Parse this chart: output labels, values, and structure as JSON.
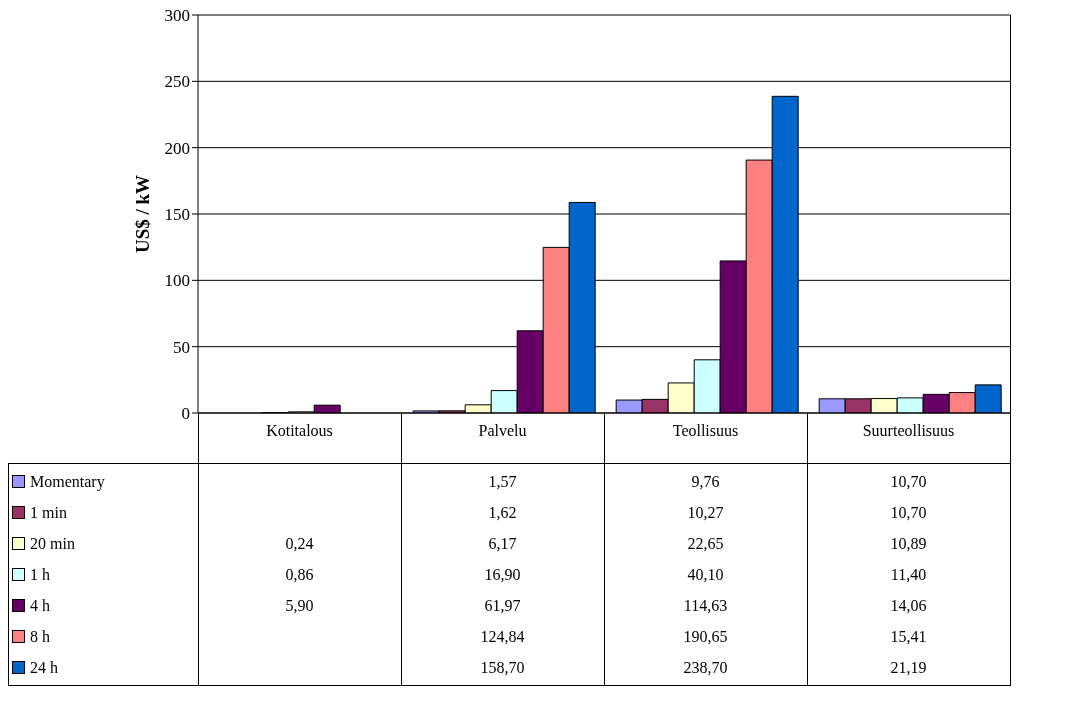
{
  "chart_data": {
    "type": "bar",
    "ylabel": "US$ / kW",
    "categories": [
      "Kotitalous",
      "Palvelu",
      "Teollisuus",
      "Suurteollisuus"
    ],
    "ylim": [
      0,
      300
    ],
    "yticks": [
      0,
      50,
      100,
      150,
      200,
      250,
      300
    ],
    "grid": "y",
    "legend": "bottom left",
    "series": [
      {
        "name": "Momentary",
        "color": "#9999ff",
        "values": [
          null,
          1.57,
          9.76,
          10.7
        ],
        "value_labels": [
          null,
          "1,57",
          "9,76",
          "10,70"
        ]
      },
      {
        "name": "1 min",
        "color": "#993366",
        "values": [
          null,
          1.62,
          10.27,
          10.7
        ],
        "value_labels": [
          null,
          "1,62",
          "10,27",
          "10,70"
        ]
      },
      {
        "name": "20 min",
        "color": "#ffffcc",
        "values": [
          0.24,
          6.17,
          22.65,
          10.89
        ],
        "value_labels": [
          "0,24",
          "6,17",
          "22,65",
          "10,89"
        ]
      },
      {
        "name": "1 h",
        "color": "#ccffff",
        "values": [
          0.86,
          16.9,
          40.1,
          11.4
        ],
        "value_labels": [
          "0,86",
          "16,90",
          "40,10",
          "11,40"
        ]
      },
      {
        "name": "4 h",
        "color": "#660066",
        "values": [
          5.9,
          61.97,
          114.63,
          14.06
        ],
        "value_labels": [
          "5,90",
          "61,97",
          "114,63",
          "14,06"
        ]
      },
      {
        "name": "8 h",
        "color": "#ff8080",
        "values": [
          null,
          124.84,
          190.65,
          15.41
        ],
        "value_labels": [
          null,
          "124,84",
          "190,65",
          "15,41"
        ]
      },
      {
        "name": "24 h",
        "color": "#0066cc",
        "values": [
          null,
          158.7,
          238.7,
          21.19
        ],
        "value_labels": [
          null,
          "158,70",
          "238,70",
          "21,19"
        ]
      }
    ]
  }
}
